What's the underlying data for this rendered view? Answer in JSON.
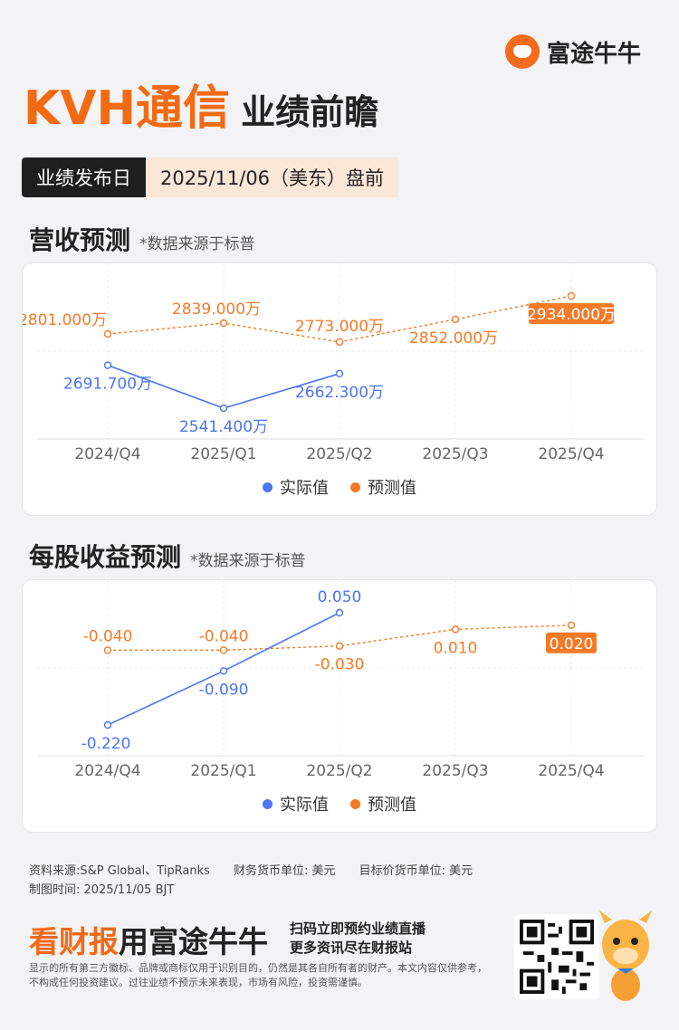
{
  "brand": {
    "name": "富途牛牛"
  },
  "header": {
    "company": "KVH通信",
    "subtitle": "业绩前瞻",
    "date_label": "业绩发布日",
    "date_value": "2025/11/06（美东）盘前"
  },
  "revenue_section": {
    "title": "营收预测",
    "note": "*数据来源于标普"
  },
  "eps_section": {
    "title": "每股收益预测",
    "note": "*数据来源于标普"
  },
  "legend": {
    "actual": "实际值",
    "forecast": "预测值"
  },
  "colors": {
    "actual": "#4d74f2",
    "forecast": "#f47a27",
    "accent": "#f26a14"
  },
  "chart_data": [
    {
      "type": "line",
      "categories": [
        "2024/Q4",
        "2025/Q1",
        "2025/Q2",
        "2025/Q3",
        "2025/Q4"
      ],
      "series": [
        {
          "name": "实际值",
          "values": [
            2691.7,
            2541.4,
            2662.3,
            null,
            null
          ],
          "labels": [
            "2691.700万",
            "2541.400万",
            "2662.300万",
            "",
            ""
          ]
        },
        {
          "name": "预测值",
          "values": [
            2801.0,
            2839.0,
            2773.0,
            2852.0,
            2934.0
          ],
          "labels": [
            "2801.000万",
            "2839.000万",
            "2773.000万",
            "2852.000万",
            "2934.000万"
          ]
        }
      ],
      "highlight_last_forecast": true,
      "grid": true,
      "legend_position": "bottom"
    },
    {
      "type": "line",
      "categories": [
        "2024/Q4",
        "2025/Q1",
        "2025/Q2",
        "2025/Q3",
        "2025/Q4"
      ],
      "series": [
        {
          "name": "实际值",
          "values": [
            -0.22,
            -0.09,
            0.05,
            null,
            null
          ],
          "labels": [
            "-0.220",
            "-0.090",
            "0.050",
            "",
            ""
          ]
        },
        {
          "name": "预测值",
          "values": [
            -0.04,
            -0.04,
            -0.03,
            0.01,
            0.02
          ],
          "labels": [
            "-0.040",
            "-0.040",
            "-0.030",
            "0.010",
            "0.020"
          ]
        }
      ],
      "highlight_last_forecast": true,
      "grid": true,
      "legend_position": "bottom"
    }
  ],
  "footer": {
    "source": "资料来源:S&P Global、TipRanks",
    "currency": "财务货币单位: 美元",
    "target_currency": "目标价货币单位: 美元",
    "made_time": "制图时间: 2025/11/05 BJT",
    "banner_a": "看财报",
    "banner_b": "用富途牛牛",
    "banner_c1": "扫码立即预约业绩直播",
    "banner_c2": "更多资讯尽在财报站",
    "disclaimer": "显示的所有第三方徽标、品牌或商标仅用于识别目的，仍然是其各自所有者的财产。本文内容仅供参考，不构成任何投资建议。过往业绩不预示未来表现，市场有风险，投资需谨慎。"
  }
}
